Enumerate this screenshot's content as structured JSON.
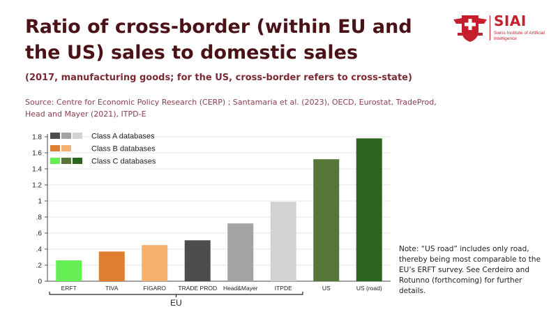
{
  "header": {
    "title": "Ratio of cross-border (within EU and the US) sales to domestic sales",
    "subtitle": "(2017, manufacturing goods; for the US, cross-border refers to cross-state)",
    "source": "Source: Centre for Economic Policy Research (CERP) ; Santamaria et al. (2023), OECD, Eurostat, TradeProd, Head and Mayer (2021), ITPD-E"
  },
  "logo": {
    "name": "SIAI",
    "subtitle": "Swiss Institute of Artificial Intelligence"
  },
  "note": "Note: “US road” includes only road, thereby being most comparable to the EU’s ERFT survey. See Cerdeiro and Rotunno (forthcoming) for further details.",
  "chart_data": {
    "type": "bar",
    "title": "",
    "xlabel": "",
    "ylabel": "",
    "categories": [
      "ERFT",
      "TIVA",
      "FIGARO",
      "TRADE PROD",
      "Head&Mayer",
      "ITPDE",
      "US",
      "US (road)"
    ],
    "values": [
      0.26,
      0.37,
      0.45,
      0.51,
      0.72,
      0.99,
      1.52,
      1.78
    ],
    "bar_colors": [
      "#66ee55",
      "#dd7f2e",
      "#f3b06e",
      "#4d4d4d",
      "#a3a3a3",
      "#d2d2d2",
      "#587538",
      "#2b6520"
    ],
    "ylim": [
      0,
      1.8
    ],
    "yticks": [
      0,
      0.2,
      0.4,
      0.6,
      0.8,
      1,
      1.2,
      1.4,
      1.6,
      1.8
    ],
    "ytick_labels": [
      "0",
      ".2",
      ".4",
      ".6",
      ".8",
      "1",
      "1.2",
      "1.4",
      "1.6",
      "1.8"
    ],
    "grid": true,
    "group_label": "EU",
    "legend": {
      "position": "top-left",
      "entries": [
        {
          "label": "Class A databases",
          "colors": [
            "#4d4d4d",
            "#a3a3a3",
            "#d2d2d2"
          ]
        },
        {
          "label": "Class B databases",
          "colors": [
            "#dd7f2e",
            "#f3b06e"
          ]
        },
        {
          "label": "Class C databases",
          "colors": [
            "#66ee55",
            "#587538",
            "#2b6520"
          ]
        }
      ]
    }
  }
}
